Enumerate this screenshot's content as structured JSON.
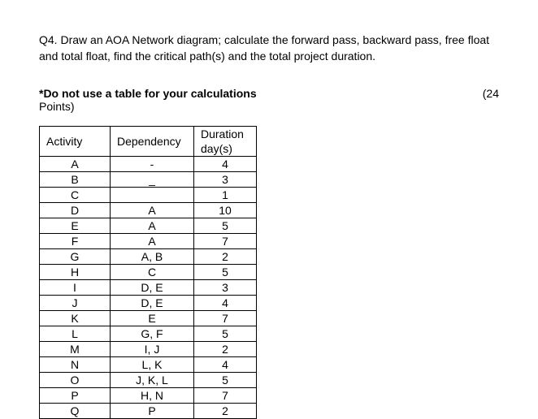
{
  "question": {
    "label": "Q4.",
    "text": "Draw an AOA Network diagram; calculate the forward pass, backward pass, free float and total float, find the critical path(s) and the total project duration."
  },
  "instruction": "*Do not use a table for your calculations",
  "points_prefix": "(24",
  "points_suffix": "Points)",
  "table": {
    "headers": {
      "activity": "Activity",
      "dependency": "Dependency",
      "duration": "Duration",
      "duration_sub": "day(s)"
    },
    "rows": [
      {
        "activity": "A",
        "dependency": "-",
        "duration": "4"
      },
      {
        "activity": "B",
        "dependency": "_",
        "duration": "3"
      },
      {
        "activity": "C",
        "dependency": "",
        "duration": "1"
      },
      {
        "activity": "D",
        "dependency": "A",
        "duration": "10"
      },
      {
        "activity": "E",
        "dependency": "A",
        "duration": "5"
      },
      {
        "activity": "F",
        "dependency": "A",
        "duration": "7"
      },
      {
        "activity": "G",
        "dependency": "A, B",
        "duration": "2"
      },
      {
        "activity": "H",
        "dependency": "C",
        "duration": "5"
      },
      {
        "activity": "I",
        "dependency": "D, E",
        "duration": "3"
      },
      {
        "activity": "J",
        "dependency": "D, E",
        "duration": "4"
      },
      {
        "activity": "K",
        "dependency": "E",
        "duration": "7"
      },
      {
        "activity": "L",
        "dependency": "G, F",
        "duration": "5"
      },
      {
        "activity": "M",
        "dependency": "I, J",
        "duration": "2"
      },
      {
        "activity": "N",
        "dependency": "L, K",
        "duration": "4"
      },
      {
        "activity": "O",
        "dependency": "J, K, L",
        "duration": "5"
      },
      {
        "activity": "P",
        "dependency": "H, N",
        "duration": "7"
      },
      {
        "activity": "Q",
        "dependency": "P",
        "duration": "2"
      }
    ]
  }
}
